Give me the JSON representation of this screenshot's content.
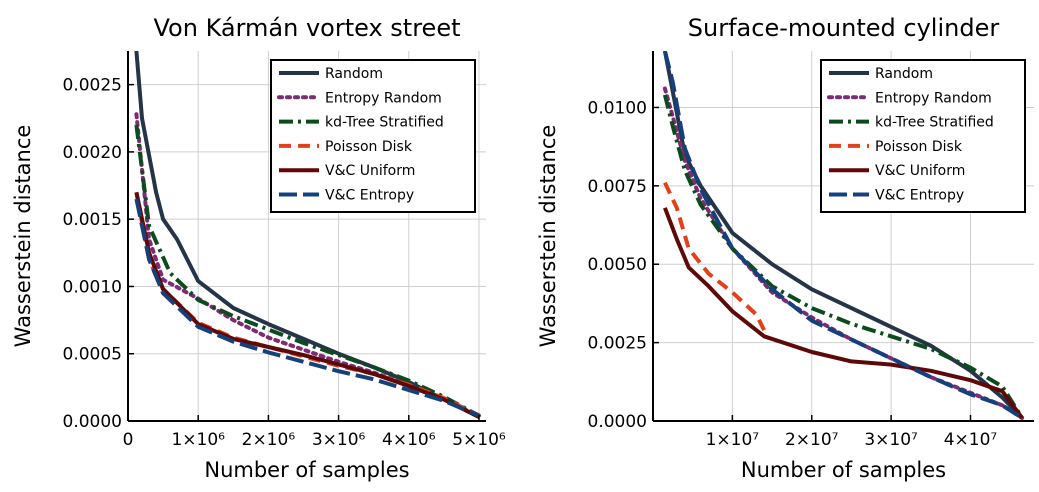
{
  "colors": {
    "Random": "#263447",
    "Entropy Random": "#7c2c72",
    "kd-Tree Stratified": "#0d4a1e",
    "Poisson Disk": "#e0411b",
    "V&C Uniform": "#5e0909",
    "V&C Entropy": "#16407a"
  },
  "chart_data": [
    {
      "type": "line",
      "title": "Von Kármán vortex street",
      "xlabel": "Number of samples",
      "ylabel": "Wasserstein distance",
      "xlim": [
        0,
        5100000
      ],
      "ylim": [
        0,
        0.00275
      ],
      "xticks": [
        0,
        1000000,
        2000000,
        3000000,
        4000000,
        5000000
      ],
      "xtick_labels": [
        "0",
        "1×10⁶",
        "2×10⁶",
        "3×10⁶",
        "4×10⁶",
        "5×10⁶"
      ],
      "yticks": [
        0,
        0.0005,
        0.001,
        0.0015,
        0.002,
        0.0025
      ],
      "ytick_labels": [
        "0.0000",
        "0.0005",
        "0.0010",
        "0.0015",
        "0.0020",
        "0.0025"
      ],
      "grid": true,
      "legend_position": "top-right",
      "series": [
        {
          "name": "Random",
          "style": "solid",
          "x": [
            120000,
            200000,
            400000,
            500000,
            700000,
            1000000,
            1500000,
            2000000,
            2500000,
            3000000,
            3500000,
            4000000,
            4500000,
            5000000
          ],
          "y": [
            0.00275,
            0.00225,
            0.0017,
            0.0015,
            0.00135,
            0.00104,
            0.00084,
            0.00072,
            0.00061,
            0.0005,
            0.0004,
            0.00029,
            0.00016,
            3e-05
          ]
        },
        {
          "name": "Entropy Random",
          "style": "dot",
          "x": [
            120000,
            300000,
            500000,
            1000000,
            1500000,
            2000000,
            2500000,
            3000000,
            3500000,
            4000000,
            4500000,
            5000000
          ],
          "y": [
            0.00228,
            0.00135,
            0.00105,
            0.00091,
            0.00075,
            0.00062,
            0.00053,
            0.00044,
            0.00036,
            0.00027,
            0.00016,
            4e-05
          ]
        },
        {
          "name": "kd-Tree Stratified",
          "style": "dashdot",
          "x": [
            120000,
            300000,
            600000,
            1000000,
            1500000,
            2000000,
            2500000,
            3000000,
            3500000,
            4000000,
            4500000,
            5000000
          ],
          "y": [
            0.0022,
            0.00145,
            0.0011,
            0.0009,
            0.00078,
            0.00068,
            0.00058,
            0.00049,
            0.0004,
            0.0003,
            0.00018,
            4e-05
          ]
        },
        {
          "name": "Poisson Disk",
          "style": "dash",
          "x": [
            120000,
            300000,
            500000,
            1000000,
            1500000,
            2000000,
            2500000,
            3000000,
            3500000,
            4000000,
            4500000,
            5000000
          ],
          "y": [
            0.0017,
            0.0012,
            0.00098,
            0.00073,
            0.00062,
            0.00055,
            0.00048,
            0.00041,
            0.00035,
            0.00027,
            0.00017,
            4e-05
          ]
        },
        {
          "name": "V&C Uniform",
          "style": "solid",
          "x": [
            120000,
            300000,
            500000,
            1000000,
            1500000,
            2000000,
            2500000,
            3000000,
            3500000,
            4000000,
            4500000,
            5000000
          ],
          "y": [
            0.0017,
            0.00125,
            0.00098,
            0.00072,
            0.00061,
            0.00055,
            0.00049,
            0.00042,
            0.00035,
            0.00026,
            0.00016,
            3e-05
          ]
        },
        {
          "name": "V&C Entropy",
          "style": "longdash",
          "x": [
            120000,
            300000,
            500000,
            1000000,
            1500000,
            2000000,
            2500000,
            3000000,
            3500000,
            4000000,
            4500000,
            5000000
          ],
          "y": [
            0.00165,
            0.0012,
            0.00095,
            0.0007,
            0.00059,
            0.00051,
            0.00044,
            0.00037,
            0.00031,
            0.00023,
            0.00015,
            4e-05
          ]
        }
      ]
    },
    {
      "type": "line",
      "title": "Surface-mounted cylinder",
      "xlabel": "Number of samples",
      "ylabel": "Wasserstein distance",
      "xlim": [
        0,
        48000000
      ],
      "ylim": [
        0,
        0.0118
      ],
      "xticks": [
        10000000,
        20000000,
        30000000,
        40000000
      ],
      "xtick_labels": [
        "1×10⁷",
        "2×10⁷",
        "3×10⁷",
        "4×10⁷"
      ],
      "yticks": [
        0,
        0.0025,
        0.005,
        0.0075,
        0.01
      ],
      "ytick_labels": [
        "0.0000",
        "0.0025",
        "0.0050",
        "0.0075",
        "0.0100"
      ],
      "grid": true,
      "legend_position": "top-right",
      "series": [
        {
          "name": "Random",
          "style": "solid",
          "x": [
            1500000,
            2500000,
            4000000,
            6000000,
            10000000,
            15000000,
            20000000,
            25000000,
            30000000,
            35000000,
            40000000,
            44000000,
            46500000
          ],
          "y": [
            0.0118,
            0.0105,
            0.0085,
            0.0075,
            0.006,
            0.005,
            0.0042,
            0.0036,
            0.003,
            0.0024,
            0.0016,
            0.00075,
            0.0001
          ]
        },
        {
          "name": "Entropy Random",
          "style": "dot",
          "x": [
            1500000,
            2500000,
            4000000,
            6000000,
            10000000,
            15000000,
            20000000,
            25000000,
            30000000,
            35000000,
            40000000,
            44000000,
            46500000
          ],
          "y": [
            0.0106,
            0.0097,
            0.0083,
            0.0071,
            0.0055,
            0.0041,
            0.0033,
            0.0026,
            0.002,
            0.0014,
            0.0009,
            0.0005,
            0.0001
          ]
        },
        {
          "name": "kd-Tree Stratified",
          "style": "dashdot",
          "x": [
            1500000,
            2500000,
            4000000,
            6000000,
            10000000,
            15000000,
            20000000,
            25000000,
            30000000,
            35000000,
            40000000,
            44000000,
            46500000
          ],
          "y": [
            0.0104,
            0.0094,
            0.008,
            0.0069,
            0.0055,
            0.0043,
            0.0036,
            0.0031,
            0.0027,
            0.0023,
            0.0017,
            0.0011,
            0.0001
          ]
        },
        {
          "name": "Poisson Disk",
          "style": "dash",
          "x": [
            1500000,
            3000000,
            4500000,
            7000000,
            10000000,
            13000000,
            14000000
          ],
          "y": [
            0.0076,
            0.0068,
            0.0055,
            0.0047,
            0.0041,
            0.0034,
            0.0029
          ]
        },
        {
          "name": "V&C Uniform",
          "style": "solid",
          "x": [
            1500000,
            3000000,
            4500000,
            7000000,
            10000000,
            14000000,
            20000000,
            25000000,
            30000000,
            35000000,
            40000000,
            44000000,
            46500000
          ],
          "y": [
            0.0068,
            0.0058,
            0.0049,
            0.0043,
            0.0035,
            0.0027,
            0.0022,
            0.0019,
            0.0018,
            0.0016,
            0.0013,
            0.00095,
            0.0001
          ]
        },
        {
          "name": "V&C Entropy",
          "style": "longdash",
          "x": [
            1500000,
            2500000,
            4000000,
            6000000,
            10000000,
            15000000,
            20000000,
            25000000,
            30000000,
            35000000,
            40000000,
            44000000,
            46500000
          ],
          "y": [
            0.0118,
            0.0108,
            0.0087,
            0.0074,
            0.0055,
            0.0042,
            0.0032,
            0.0026,
            0.002,
            0.0014,
            0.00085,
            0.0005,
            0.0001
          ]
        }
      ]
    }
  ]
}
